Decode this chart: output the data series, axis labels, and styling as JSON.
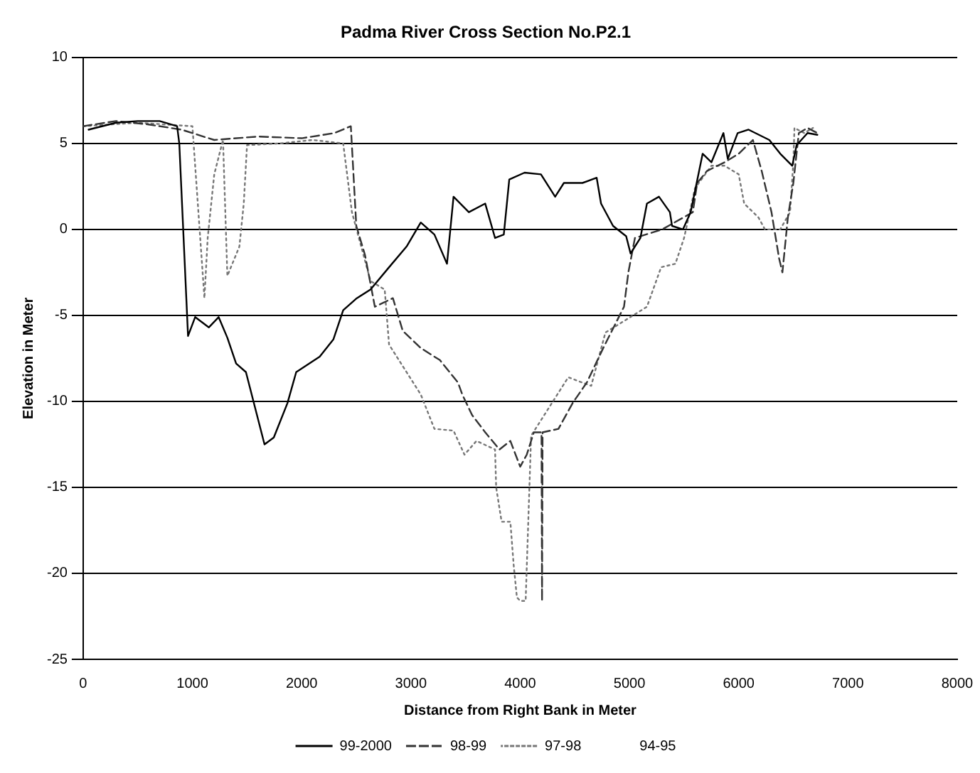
{
  "chart_data": {
    "type": "line",
    "title": "Padma River Cross Section No.P2.1",
    "xlabel": "Distance from Right Bank in Meter",
    "ylabel": "Elevation in Meter",
    "xlim": [
      0,
      8000
    ],
    "xticks": [
      0,
      1000,
      2000,
      3000,
      4000,
      5000,
      6000,
      7000,
      8000
    ],
    "ylim": [
      -25,
      10
    ],
    "yticks": [
      -25,
      -20,
      -15,
      -10,
      -5,
      0,
      5,
      10
    ],
    "grid": "y",
    "legend": "bottom",
    "marker": "none",
    "series": [
      {
        "name": "99-2000",
        "color": "#000000",
        "line_style": "solid",
        "x": [
          50,
          300,
          500,
          700,
          860,
          880,
          960,
          1025,
          1150,
          1240,
          1320,
          1400,
          1490,
          1660,
          1745,
          1870,
          1950,
          2165,
          2290,
          2380,
          2505,
          2630,
          2800,
          2960,
          3090,
          3215,
          3330,
          3390,
          3530,
          3680,
          3770,
          3850,
          3900,
          4040,
          4190,
          4320,
          4400,
          4570,
          4700,
          4740,
          4850,
          4970,
          5010,
          5100,
          5160,
          5270,
          5370,
          5390,
          5490,
          5560,
          5670,
          5750,
          5860,
          5900,
          5990,
          6090,
          6280,
          6380,
          6490,
          6530,
          6630,
          6720
        ],
        "values": [
          5.8,
          6.2,
          6.3,
          6.3,
          6,
          5,
          -6.2,
          -5.1,
          -5.7,
          -5.1,
          -6.3,
          -7.8,
          -8.3,
          -12.5,
          -12.1,
          -10.1,
          -8.3,
          -7.4,
          -6.4,
          -4.7,
          -4,
          -3.5,
          -2.2,
          -1,
          0.4,
          -0.3,
          -2,
          1.9,
          1,
          1.5,
          -0.5,
          -0.3,
          2.9,
          3.3,
          3.2,
          1.9,
          2.7,
          2.7,
          3,
          1.5,
          0.2,
          -0.4,
          -1.4,
          -0.5,
          1.5,
          1.9,
          1,
          0.2,
          0,
          1,
          4.4,
          3.9,
          5.6,
          4.1,
          5.6,
          5.8,
          5.2,
          4.4,
          3.7,
          4.9,
          5.6,
          5.5
        ]
      },
      {
        "name": "98-99",
        "color": "#333333",
        "line_style": "dashed",
        "x": [
          0,
          300,
          600,
          900,
          1200,
          1600,
          2000,
          2300,
          2450,
          2500,
          2580,
          2670,
          2835,
          2925,
          3090,
          3265,
          3430,
          3470,
          3560,
          3680,
          3810,
          3910,
          4000,
          4060,
          4125,
          4195,
          4200,
          4205,
          4350,
          4480,
          4610,
          4760,
          4950,
          4990,
          5050,
          5300,
          5580,
          5620,
          5710,
          5870,
          6000,
          6130,
          6210,
          6300,
          6370,
          6400,
          6450,
          6500,
          6550,
          6630,
          6720
        ],
        "values": [
          6,
          6.3,
          6.1,
          5.8,
          5.2,
          5.4,
          5.3,
          5.6,
          6,
          0.2,
          -1.5,
          -4.5,
          -4,
          -5.9,
          -6.9,
          -7.6,
          -8.9,
          -9.6,
          -10.8,
          -11.8,
          -12.8,
          -12.3,
          -13.8,
          -13.1,
          -11.8,
          -11.8,
          -21.6,
          -11.8,
          -11.6,
          -10.1,
          -8.9,
          -6.9,
          -4.5,
          -2.5,
          -0.5,
          0,
          1,
          2.7,
          3.4,
          3.9,
          4.4,
          5.2,
          3.4,
          1,
          -1.7,
          -2.5,
          0.7,
          2.7,
          5.6,
          5.9,
          5.6
        ]
      },
      {
        "name": "97-98",
        "color": "#777777",
        "line_style": "dotted",
        "x": [
          0,
          500,
          1000,
          1110,
          1140,
          1200,
          1280,
          1320,
          1430,
          1470,
          1500,
          1800,
          2100,
          2380,
          2460,
          2630,
          2760,
          2800,
          3090,
          3215,
          3390,
          3490,
          3600,
          3770,
          3780,
          3830,
          3910,
          3940,
          3970,
          4000,
          4050,
          4100,
          4440,
          4650,
          4700,
          4780,
          5160,
          5290,
          5420,
          5500,
          5600,
          5750,
          5870,
          6000,
          6050,
          6180,
          6240,
          6380,
          6470,
          6500,
          6510,
          6600,
          6680
        ],
        "values": [
          6,
          6.2,
          6,
          -4,
          -0.5,
          3.2,
          5.2,
          -2.7,
          -1,
          1.5,
          4.9,
          5,
          5.2,
          5,
          1,
          -3,
          -3.5,
          -6.7,
          -9.6,
          -11.6,
          -11.7,
          -13.1,
          -12.3,
          -12.8,
          -15,
          -17,
          -17,
          -19.5,
          -21.4,
          -21.6,
          -21.6,
          -12,
          -8.6,
          -9.1,
          -7.9,
          -6,
          -4.5,
          -2.2,
          -2,
          -0.5,
          2.4,
          3.7,
          3.7,
          3.2,
          1.5,
          0.7,
          0,
          0,
          1,
          3.9,
          5.9,
          5.6,
          5.9
        ]
      },
      {
        "name": "94-95",
        "line_style": "solid"
      }
    ]
  }
}
